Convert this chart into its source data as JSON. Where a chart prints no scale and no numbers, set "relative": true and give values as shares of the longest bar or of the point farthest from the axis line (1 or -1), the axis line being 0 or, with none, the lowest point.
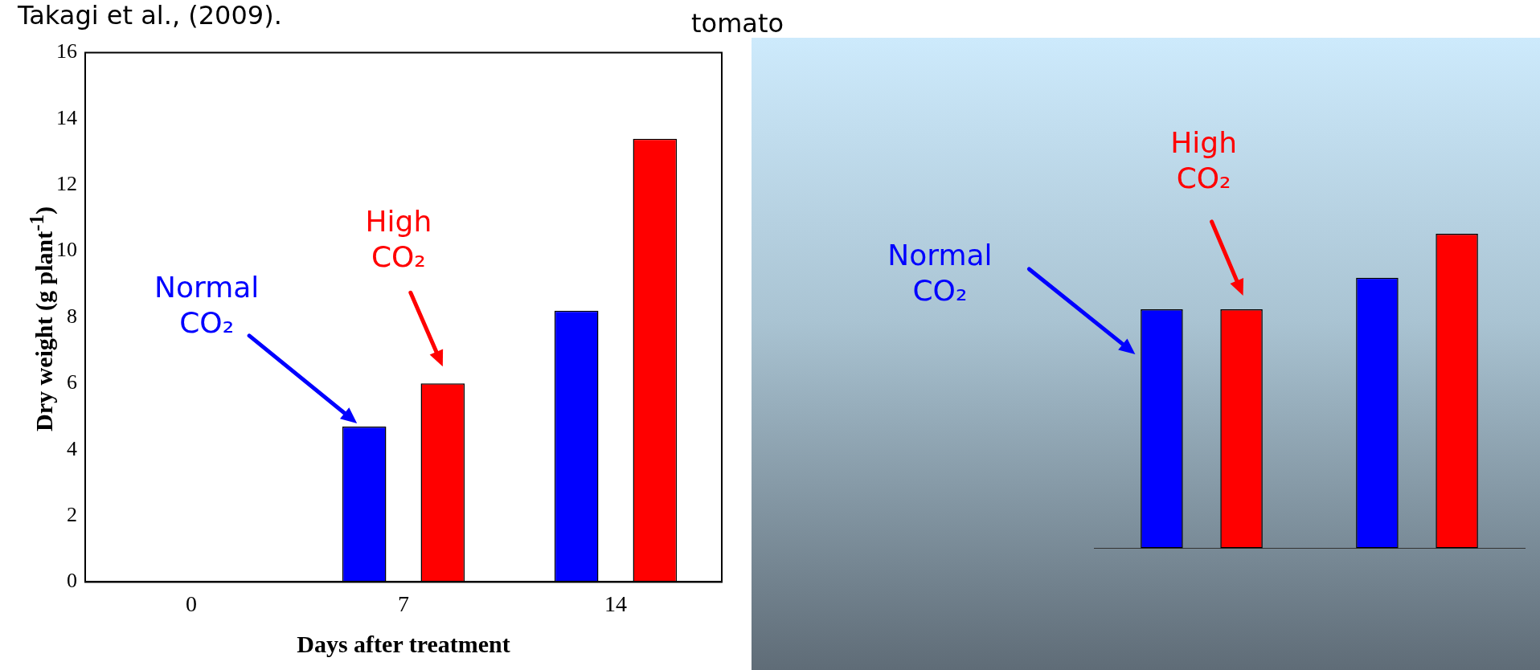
{
  "chart_data": [
    {
      "type": "bar",
      "title": "tomato",
      "annotations": [
        "Takagi et al., (2009)."
      ],
      "xlabel": "Days after treatment",
      "ylabel": "Dry weight (g plant$^{-1}$)",
      "categories": [
        "0",
        "7",
        "14"
      ],
      "series": [
        {
          "name": "Normal CO₂",
          "color": "#0000ff",
          "values": [
            null,
            4.7,
            8.2
          ]
        },
        {
          "name": "High CO₂",
          "color": "#ff0000",
          "values": [
            null,
            6.0,
            13.4
          ]
        }
      ],
      "ylim": [
        0,
        16
      ],
      "yticks": [
        0,
        2,
        4,
        6,
        8,
        10,
        12,
        14,
        16
      ]
    },
    {
      "type": "bar",
      "relative": true,
      "categories": [
        null,
        null
      ],
      "series": [
        {
          "name": "Normal CO₂",
          "color": "#0000ff",
          "values": [
            0.76,
            0.86
          ]
        },
        {
          "name": "High CO₂",
          "color": "#ff0000",
          "values": [
            0.76,
            1
          ]
        }
      ]
    }
  ]
}
